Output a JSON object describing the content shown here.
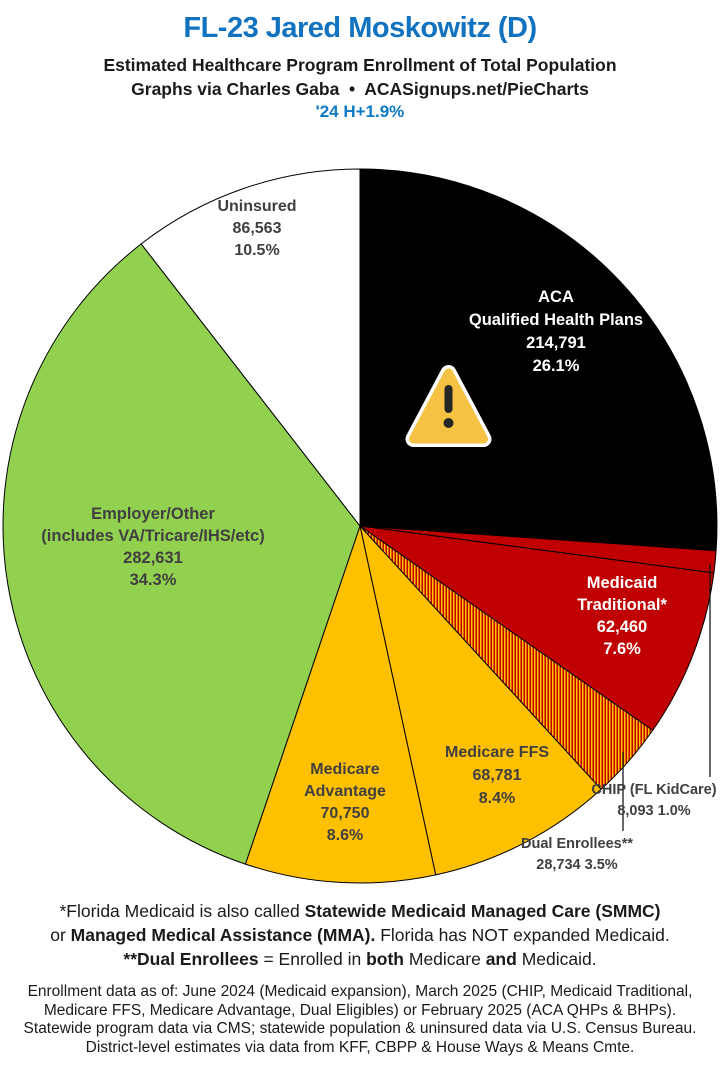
{
  "header": {
    "title": "FL-23 Jared Moskowitz (D)",
    "subtitle": "Estimated Healthcare Program Enrollment of Total Population",
    "attribution": "Graphs via Charles Gaba  •  ACASignups.net/PieCharts",
    "trend": "'24 H+1.9%"
  },
  "colors": {
    "title_blue": "#1173bf",
    "trend_blue": "#0d79c4",
    "label_dark": "#404040",
    "label_light": "#ffffff",
    "pie_black": "#000000",
    "pie_red": "#c00000",
    "pie_gold": "#ffc000",
    "pie_green": "#92d050",
    "pie_white": "#ffffff",
    "warning_fill": "#f6c244",
    "warning_mark": "#262626"
  },
  "icons": {
    "warning": "warning-triangle-icon"
  },
  "chart_data": {
    "type": "pie",
    "title": "FL-23 Jared Moskowitz (D) — Estimated Healthcare Program Enrollment of Total Population",
    "start_angle_deg": 0,
    "direction": "clockwise",
    "legend_position": "labels-on-slices",
    "slices": [
      {
        "name": "ACA Qualified Health Plans",
        "value": 214791,
        "pct": 26.1,
        "color": "#000000",
        "label_color": "#ffffff",
        "label_lines": [
          "ACA",
          "Qualified Health Plans",
          "214,791",
          "26.1%"
        ]
      },
      {
        "name": "CHIP (FL KidCare)",
        "value": 8093,
        "pct": 1.0,
        "color": "#c00000",
        "label_color": "#404040",
        "callout": true,
        "label_lines": [
          "CHIP (FL KidCare)",
          "8,093 1.0%"
        ]
      },
      {
        "name": "Medicaid Traditional*",
        "value": 62460,
        "pct": 7.6,
        "color": "#c00000",
        "label_color": "#ffffff",
        "label_lines": [
          "Medicaid",
          "Traditional*",
          "62,460",
          "7.6%"
        ]
      },
      {
        "name": "Dual Enrollees**",
        "value": 28734,
        "pct": 3.5,
        "color": "#c00000",
        "pattern": "vertical-stripes",
        "pattern_colors": [
          "#c00000",
          "#ffc000"
        ],
        "label_color": "#404040",
        "callout": true,
        "label_lines": [
          "Dual Enrollees**",
          "28,734 3.5%"
        ]
      },
      {
        "name": "Medicare FFS",
        "value": 68781,
        "pct": 8.4,
        "color": "#ffc000",
        "label_color": "#404040",
        "label_lines": [
          "Medicare FFS",
          "68,781",
          "8.4%"
        ]
      },
      {
        "name": "Medicare Advantage",
        "value": 70750,
        "pct": 8.6,
        "color": "#ffc000",
        "label_color": "#404040",
        "label_lines": [
          "Medicare",
          "Advantage",
          "70,750",
          "8.6%"
        ]
      },
      {
        "name": "Employer/Other (includes VA/Tricare/IHS/etc)",
        "value": 282631,
        "pct": 34.3,
        "color": "#92d050",
        "label_color": "#404040",
        "label_lines": [
          "Employer/Other",
          "(includes VA/Tricare/IHS/etc)",
          "282,631",
          "34.3%"
        ]
      },
      {
        "name": "Uninsured",
        "value": 86563,
        "pct": 10.5,
        "color": "#ffffff",
        "label_color": "#404040",
        "label_lines": [
          "Uninsured",
          "86,563",
          "10.5%"
        ]
      }
    ]
  },
  "footnotes": {
    "medicaid_note_lines": [
      [
        {
          "text": "*Florida Medicaid is also called ",
          "bold": false
        },
        {
          "text": "Statewide Medicaid Managed Care (SMMC)",
          "bold": true
        }
      ],
      [
        {
          "text": "or ",
          "bold": false
        },
        {
          "text": "Managed Medical Assistance (MMA).",
          "bold": true
        },
        {
          "text": " Florida has NOT expanded Medicaid.",
          "bold": false
        }
      ],
      [
        {
          "text": "**Dual Enrollees",
          "bold": true
        },
        {
          "text": " = Enrolled in ",
          "bold": false
        },
        {
          "text": "both",
          "bold": true
        },
        {
          "text": " Medicare ",
          "bold": false
        },
        {
          "text": "and",
          "bold": true
        },
        {
          "text": " Medicaid.",
          "bold": false
        }
      ]
    ],
    "sources_note_lines": [
      "Enrollment data as of: June 2024 (Medicaid expansion), March 2025 (CHIP, Medicaid Traditional,",
      "Medicare FFS, Medicare Advantage, Dual Eligibles) or February 2025 (ACA QHPs & BHPs).",
      "Statewide program data via CMS; statewide population & uninsured data via U.S. Census Bureau.",
      "District-level estimates via data from KFF, CBPP & House Ways & Means Cmte."
    ]
  }
}
